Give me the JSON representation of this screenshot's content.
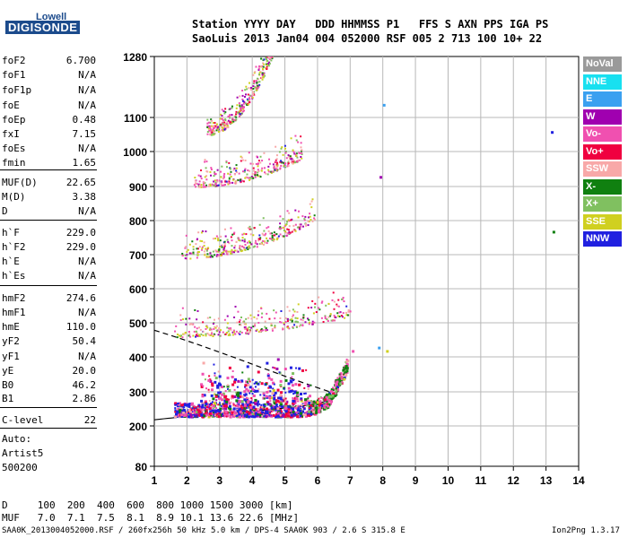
{
  "logo": {
    "top": "Lowell",
    "bottom": "DIGISONDE"
  },
  "header": {
    "line1": "Station YYYY DAY   DDD HHMMSS P1   FFS S AXN PPS IGA PS",
    "line2": "SaoLuis 2013 Jan04 004 052000 RSF 005 2 713 100 10+ 22"
  },
  "params": [
    {
      "name": "foF2",
      "value": "6.700"
    },
    {
      "name": "foF1",
      "value": "N/A"
    },
    {
      "name": "foF1p",
      "value": "N/A"
    },
    {
      "name": "foE",
      "value": "N/A"
    },
    {
      "name": "foEp",
      "value": "0.48"
    },
    {
      "name": "fxI",
      "value": "7.15"
    },
    {
      "name": "foEs",
      "value": "N/A"
    },
    {
      "name": "fmin",
      "value": "1.65"
    },
    {
      "name": "MUF(D)",
      "value": "22.65"
    },
    {
      "name": "M(D)",
      "value": "3.38"
    },
    {
      "name": "D",
      "value": "N/A"
    },
    {
      "name": "h`F",
      "value": "229.0"
    },
    {
      "name": "h`F2",
      "value": "229.0"
    },
    {
      "name": "h`E",
      "value": "N/A"
    },
    {
      "name": "h`Es",
      "value": "N/A"
    },
    {
      "name": "hmF2",
      "value": "274.6"
    },
    {
      "name": "hmF1",
      "value": "N/A"
    },
    {
      "name": "hmE",
      "value": "110.0"
    },
    {
      "name": "yF2",
      "value": "50.4"
    },
    {
      "name": "yF1",
      "value": "N/A"
    },
    {
      "name": "yE",
      "value": "20.0"
    },
    {
      "name": "B0",
      "value": "46.2"
    },
    {
      "name": "B1",
      "value": "2.86"
    },
    {
      "name": "C-level",
      "value": "22"
    }
  ],
  "autoscale": {
    "line1": "Auto:",
    "line2": "Artist5",
    "line3": "500200"
  },
  "legend": [
    {
      "label": "NoVal",
      "color": "#9a9a9a"
    },
    {
      "label": "NNE",
      "color": "#18e0f0"
    },
    {
      "label": "E",
      "color": "#3aa0f0"
    },
    {
      "label": "W",
      "color": "#a000b0"
    },
    {
      "label": "Vo-",
      "color": "#f050b0"
    },
    {
      "label": "Vo+",
      "color": "#f00040"
    },
    {
      "label": "SSW",
      "color": "#f8a8a8"
    },
    {
      "label": "X-",
      "color": "#108010"
    },
    {
      "label": "X+",
      "color": "#80c060"
    },
    {
      "label": "SSE",
      "color": "#d0d020"
    },
    {
      "label": "NNW",
      "color": "#2020e0"
    }
  ],
  "chart_data": {
    "type": "scatter",
    "x_ticks": [
      1,
      2,
      3,
      4,
      5,
      6,
      7,
      8,
      9,
      10,
      11,
      12,
      13,
      14
    ],
    "y_ticks": [
      80,
      200,
      300,
      400,
      500,
      600,
      700,
      800,
      900,
      1000,
      1100,
      1280
    ],
    "xlim": [
      1,
      14
    ],
    "ylim": [
      80,
      1280
    ],
    "ylabel": "",
    "xlabel": "",
    "grid": true
  },
  "footer": {
    "line1": "D     100  200  400  600  800 1000 1500 3000 [km]",
    "line2": "MUF   7.0  7.1  7.5  8.1  8.9 10.1 13.6 22.6 [MHz]",
    "line3": "SAA0K_2013004052000.RSF / 260fx256h 50 kHz 5.0 km / DPS-4 SAA0K 903 / 2.6 S 315.8 E",
    "version": "Ion2Png 1.3.17"
  }
}
